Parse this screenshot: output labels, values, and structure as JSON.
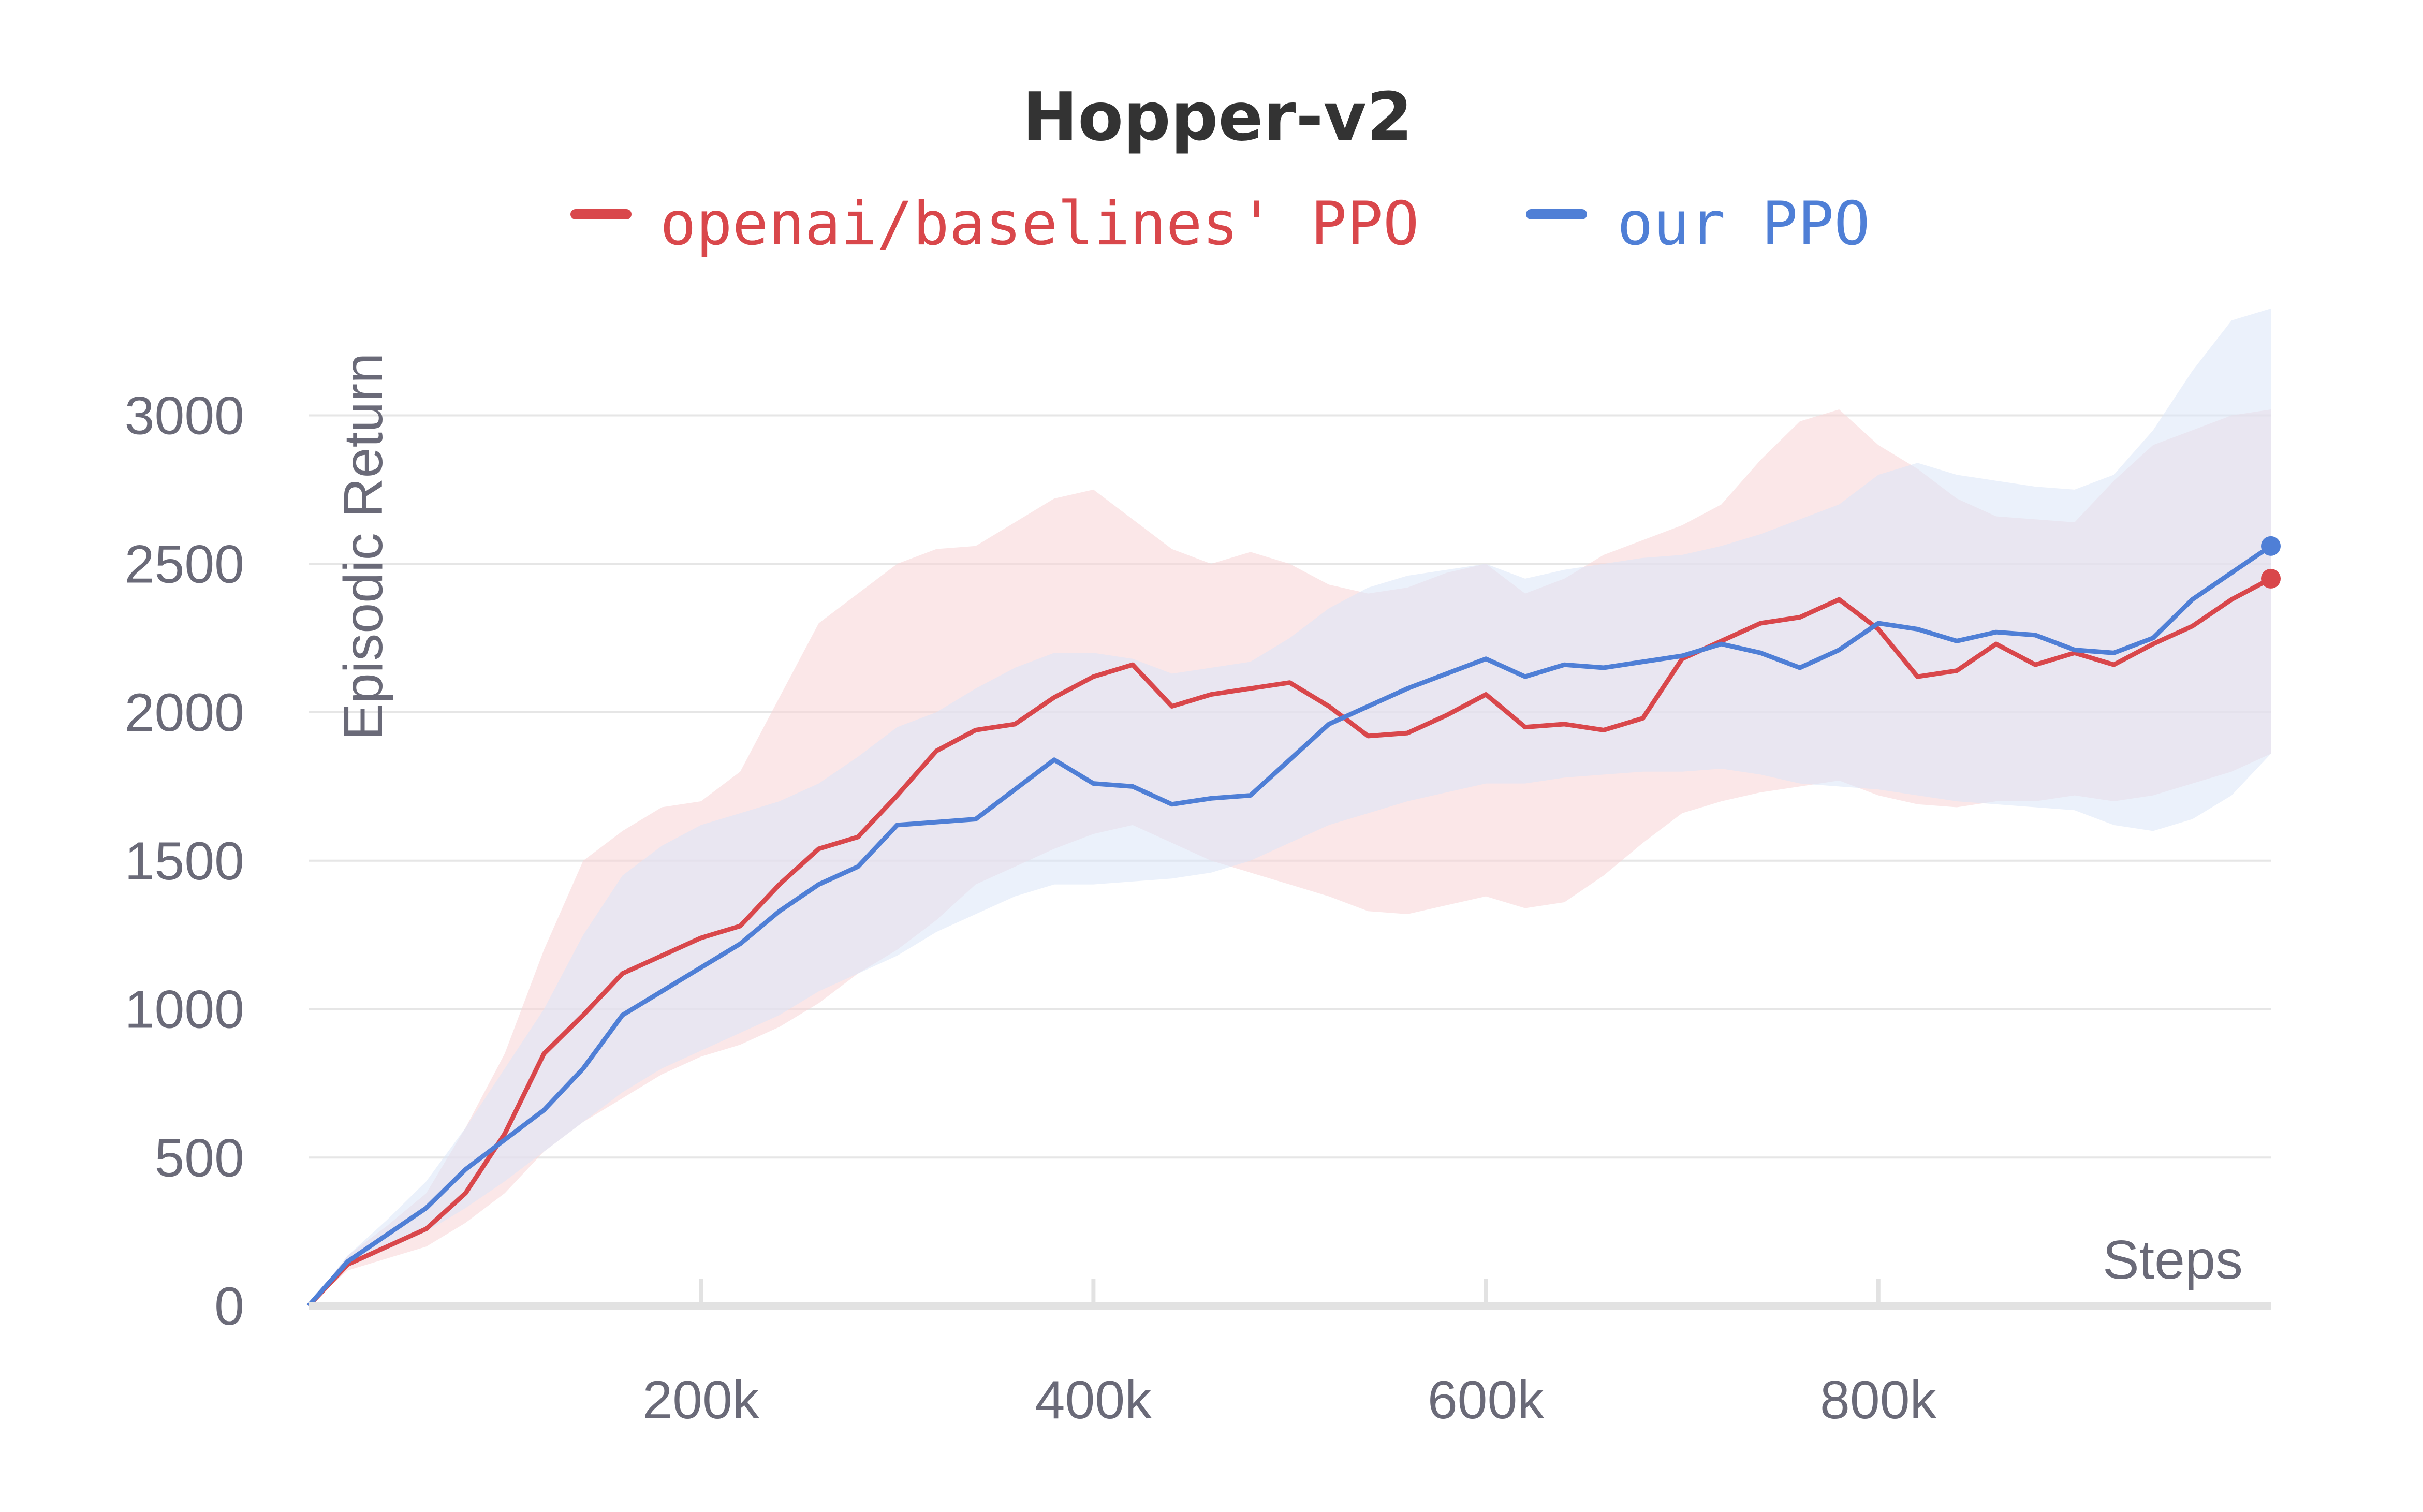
{
  "chart_data": {
    "type": "line",
    "title": "Hopper-v2",
    "xlabel": "Steps",
    "ylabel": "Episodic Return",
    "xlim": [
      0,
      1000000
    ],
    "ylim": [
      0,
      3200
    ],
    "grid": true,
    "legend_position": "top-center",
    "x_ticks": [
      {
        "value": 200000,
        "label": "200k"
      },
      {
        "value": 400000,
        "label": "400k"
      },
      {
        "value": 600000,
        "label": "600k"
      },
      {
        "value": 800000,
        "label": "800k"
      }
    ],
    "y_ticks": [
      0,
      500,
      1000,
      1500,
      2000,
      2500,
      3000
    ],
    "x": [
      0,
      20000,
      40000,
      60000,
      80000,
      100000,
      120000,
      140000,
      160000,
      180000,
      200000,
      220000,
      240000,
      260000,
      280000,
      300000,
      320000,
      340000,
      360000,
      380000,
      400000,
      420000,
      440000,
      460000,
      480000,
      500000,
      520000,
      540000,
      560000,
      580000,
      600000,
      620000,
      640000,
      660000,
      680000,
      700000,
      720000,
      740000,
      760000,
      780000,
      800000,
      820000,
      840000,
      860000,
      880000,
      900000,
      920000,
      940000,
      960000,
      980000,
      1000000
    ],
    "series": [
      {
        "name": "openai/baselines' PPO",
        "color": "#d9474b",
        "band_color": "#f7d4d6",
        "values": [
          0,
          140,
          200,
          260,
          380,
          580,
          850,
          980,
          1120,
          1180,
          1240,
          1280,
          1420,
          1540,
          1580,
          1720,
          1870,
          1940,
          1960,
          2050,
          2120,
          2160,
          2020,
          2060,
          2080,
          2100,
          2020,
          1920,
          1930,
          1990,
          2060,
          1950,
          1960,
          1940,
          1980,
          2180,
          2240,
          2300,
          2320,
          2380,
          2280,
          2120,
          2140,
          2230,
          2160,
          2200,
          2160,
          2230,
          2290,
          2380,
          2450
        ],
        "upper": [
          0,
          170,
          270,
          380,
          600,
          850,
          1200,
          1500,
          1600,
          1680,
          1700,
          1800,
          2050,
          2300,
          2400,
          2500,
          2550,
          2560,
          2640,
          2720,
          2750,
          2650,
          2550,
          2500,
          2540,
          2500,
          2430,
          2400,
          2420,
          2470,
          2500,
          2400,
          2450,
          2530,
          2580,
          2630,
          2700,
          2850,
          2980,
          3020,
          2900,
          2820,
          2720,
          2660,
          2650,
          2640,
          2780,
          2900,
          2950,
          3000,
          3020
        ],
        "lower": [
          0,
          120,
          160,
          200,
          280,
          380,
          520,
          620,
          700,
          780,
          840,
          880,
          940,
          1020,
          1120,
          1200,
          1300,
          1420,
          1480,
          1540,
          1590,
          1620,
          1560,
          1500,
          1460,
          1420,
          1380,
          1330,
          1320,
          1350,
          1380,
          1340,
          1360,
          1450,
          1560,
          1660,
          1700,
          1730,
          1750,
          1770,
          1720,
          1690,
          1680,
          1700,
          1700,
          1720,
          1700,
          1720,
          1760,
          1800,
          1860
        ]
      },
      {
        "name": "our PPO",
        "color": "#4f7fd6",
        "band_color": "#dbe6f8",
        "values": [
          0,
          150,
          240,
          330,
          460,
          560,
          660,
          800,
          980,
          1060,
          1140,
          1220,
          1330,
          1420,
          1480,
          1620,
          1630,
          1640,
          1740,
          1840,
          1760,
          1750,
          1690,
          1710,
          1720,
          1840,
          1960,
          2020,
          2080,
          2130,
          2180,
          2120,
          2160,
          2150,
          2170,
          2190,
          2230,
          2200,
          2150,
          2210,
          2300,
          2280,
          2240,
          2270,
          2260,
          2210,
          2200,
          2250,
          2380,
          2470,
          2560
        ],
        "upper": [
          0,
          170,
          290,
          420,
          600,
          800,
          1000,
          1250,
          1450,
          1550,
          1620,
          1660,
          1700,
          1760,
          1850,
          1950,
          2000,
          2080,
          2150,
          2200,
          2200,
          2180,
          2130,
          2150,
          2170,
          2250,
          2350,
          2420,
          2460,
          2480,
          2500,
          2450,
          2480,
          2500,
          2520,
          2530,
          2560,
          2600,
          2650,
          2700,
          2800,
          2840,
          2800,
          2780,
          2760,
          2750,
          2800,
          2950,
          3150,
          3320,
          3360
        ],
        "lower": [
          0,
          130,
          190,
          250,
          330,
          420,
          520,
          620,
          720,
          800,
          860,
          920,
          980,
          1060,
          1120,
          1180,
          1260,
          1320,
          1380,
          1420,
          1420,
          1430,
          1440,
          1460,
          1500,
          1560,
          1620,
          1660,
          1700,
          1730,
          1760,
          1760,
          1780,
          1790,
          1800,
          1800,
          1810,
          1790,
          1760,
          1750,
          1740,
          1720,
          1700,
          1690,
          1680,
          1670,
          1620,
          1600,
          1640,
          1720,
          1860
        ]
      }
    ]
  }
}
